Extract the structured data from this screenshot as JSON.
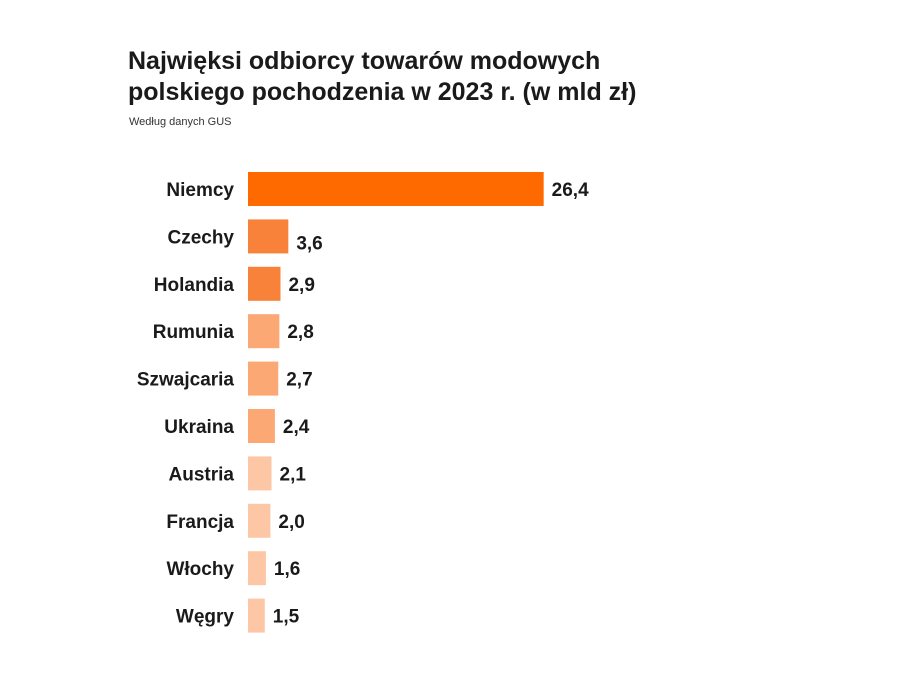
{
  "chart_data": {
    "type": "bar",
    "orientation": "horizontal",
    "title_line1": "Najwięksi odbiorcy towarów modowych",
    "title_line2": "polskiego pochodzenia w 2023 r. (w mld zł)",
    "subtitle": "Według danych GUS",
    "categories": [
      "Niemcy",
      "Czechy",
      "Holandia",
      "Rumunia",
      "Szwajcaria",
      "Ukraina",
      "Austria",
      "Francja",
      "Włochy",
      "Węgry"
    ],
    "values": [
      26.4,
      3.6,
      2.9,
      2.8,
      2.7,
      2.4,
      2.1,
      2.0,
      1.6,
      1.5
    ],
    "value_labels": [
      "26,4",
      "3,6",
      "2,9",
      "2,8",
      "2,7",
      "2,4",
      "2,1",
      "2,0",
      "1,6",
      "1,5"
    ],
    "colors": [
      "#ff6a00",
      "#f9823a",
      "#f9823a",
      "#fba874",
      "#fba874",
      "#fba874",
      "#fdc7a6",
      "#fdc7a6",
      "#fdc7a6",
      "#fdc7a6"
    ],
    "grid": false,
    "legend": "none"
  }
}
